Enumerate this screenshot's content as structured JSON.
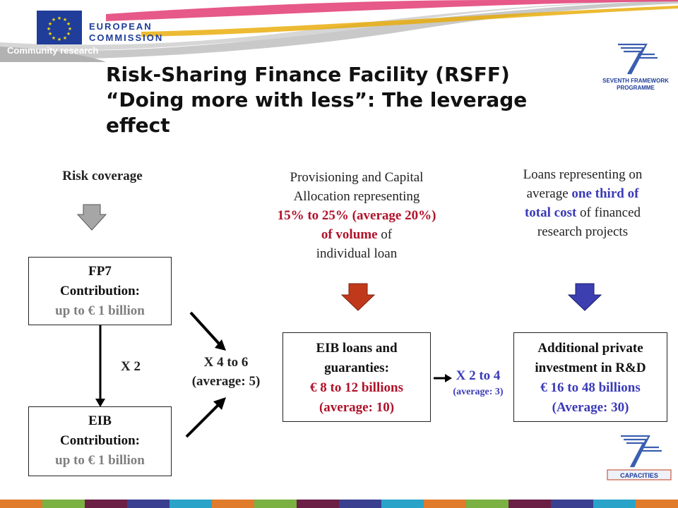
{
  "header": {
    "org_line1": "EUROPEAN",
    "org_line2": "COMMISSION",
    "subtitle": "Community research",
    "title_line1": "Risk-Sharing Finance Facility (RSFF)",
    "title_line2": "“Doing more with less”: The leverage",
    "title_line3": "effect",
    "fp7_logo_line1": "SEVENTH FRAMEWORK",
    "fp7_logo_line2": "PROGRAMME",
    "capacities_logo": "CAPACITIES"
  },
  "left_column": {
    "heading": "Risk coverage",
    "fp7_box": {
      "line1": "FP7",
      "line2": "Contribution:",
      "line3": "up to € 1 billion"
    },
    "multiplier": "X 2",
    "eib_box": {
      "line1": "EIB",
      "line2": "Contribution:",
      "line3": "up to € 1 billion"
    }
  },
  "middle_multiplier": {
    "line1": "X 4 to 6",
    "line2": "(average: 5)"
  },
  "middle_column": {
    "text_line1": "Provisioning and Capital",
    "text_line2": "Allocation representing",
    "text_line3": "15% to 25% (average 20%)",
    "text_line4": "of volume",
    "text_line4_tail": "of",
    "text_line5": "individual loan",
    "box": {
      "line1": "EIB loans and",
      "line2": "guaranties:",
      "line3": "€ 8 to 12 billions",
      "line4": "(average: 10)"
    }
  },
  "right_multiplier": {
    "line1": "X 2 to 4",
    "line2": "(average: 3)"
  },
  "right_column": {
    "text_line1": "Loans representing on",
    "text_line2_pre": "average",
    "text_line2_hl": "one third of",
    "text_line3_hl": "total cost",
    "text_line3_tail": "of financed",
    "text_line4": "research projects",
    "box": {
      "line1": "Additional private",
      "line2": "investment in R&D",
      "line3": "€ 16 to 48 billions",
      "line4": "(Average: 30)"
    }
  },
  "colors": {
    "grey_arrow": "#a6a6a6",
    "red_arrow": "#c0391b",
    "blue_arrow": "#3b3fb0",
    "eu_blue": "#1f3d99",
    "highlight_red": "#b0122a",
    "highlight_blue": "#3a3ab8"
  }
}
